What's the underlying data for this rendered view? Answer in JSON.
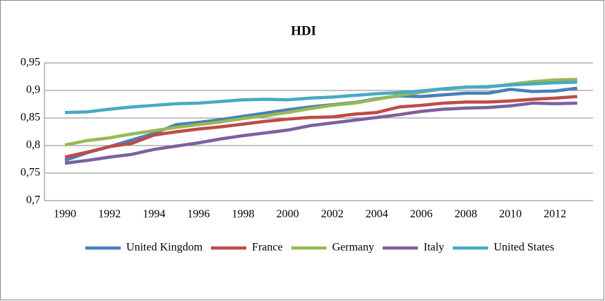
{
  "chart_data": {
    "type": "line",
    "title": "HDI",
    "categories": [
      "1990",
      null,
      "1992",
      null,
      "1994",
      null,
      "1996",
      null,
      "1998",
      null,
      "2000",
      null,
      "2002",
      null,
      "2004",
      null,
      "2006",
      null,
      "2008",
      null,
      "2010",
      null,
      "2012",
      null
    ],
    "series": [
      {
        "name": "United Kingdom",
        "color": "#4a7ebb",
        "values": [
          0.773,
          0.787,
          0.798,
          0.81,
          0.822,
          0.838,
          0.842,
          0.847,
          0.853,
          0.859,
          0.865,
          0.87,
          0.874,
          0.878,
          0.885,
          0.89,
          0.889,
          0.892,
          0.895,
          0.895,
          0.902,
          0.898,
          0.899,
          0.904
        ]
      },
      {
        "name": "France",
        "color": "#be4b48",
        "values": [
          0.779,
          0.788,
          0.798,
          0.804,
          0.819,
          0.825,
          0.83,
          0.834,
          0.839,
          0.844,
          0.848,
          0.851,
          0.852,
          0.857,
          0.86,
          0.87,
          0.873,
          0.877,
          0.879,
          0.879,
          0.881,
          0.884,
          0.886,
          0.889
        ]
      },
      {
        "name": "Germany",
        "color": "#98b954",
        "values": [
          0.801,
          0.809,
          0.814,
          0.821,
          0.827,
          0.833,
          0.838,
          0.843,
          0.849,
          0.854,
          0.86,
          0.867,
          0.873,
          0.877,
          0.884,
          0.891,
          0.897,
          0.903,
          0.906,
          0.906,
          0.911,
          0.916,
          0.919,
          0.92
        ]
      },
      {
        "name": "Italy",
        "color": "#7d60a0",
        "values": [
          0.768,
          0.773,
          0.779,
          0.784,
          0.793,
          0.799,
          0.805,
          0.812,
          0.818,
          0.823,
          0.828,
          0.836,
          0.841,
          0.846,
          0.851,
          0.856,
          0.862,
          0.866,
          0.868,
          0.869,
          0.872,
          0.877,
          0.876,
          0.877
        ]
      },
      {
        "name": "United States",
        "color": "#46aac5",
        "values": [
          0.86,
          0.861,
          0.866,
          0.87,
          0.873,
          0.876,
          0.877,
          0.88,
          0.883,
          0.884,
          0.883,
          0.886,
          0.888,
          0.891,
          0.894,
          0.896,
          0.899,
          0.903,
          0.906,
          0.907,
          0.91,
          0.912,
          0.914,
          0.915
        ]
      }
    ],
    "ylim": [
      0.7,
      0.95
    ],
    "yticks": [
      {
        "value": 0.7,
        "label": "0,7"
      },
      {
        "value": 0.75,
        "label": "0,75"
      },
      {
        "value": 0.8,
        "label": "0,8"
      },
      {
        "value": 0.85,
        "label": "0,85"
      },
      {
        "value": 0.9,
        "label": "0,9"
      },
      {
        "value": 0.95,
        "label": "0,95"
      }
    ],
    "grid": true,
    "legend": "bottom"
  }
}
